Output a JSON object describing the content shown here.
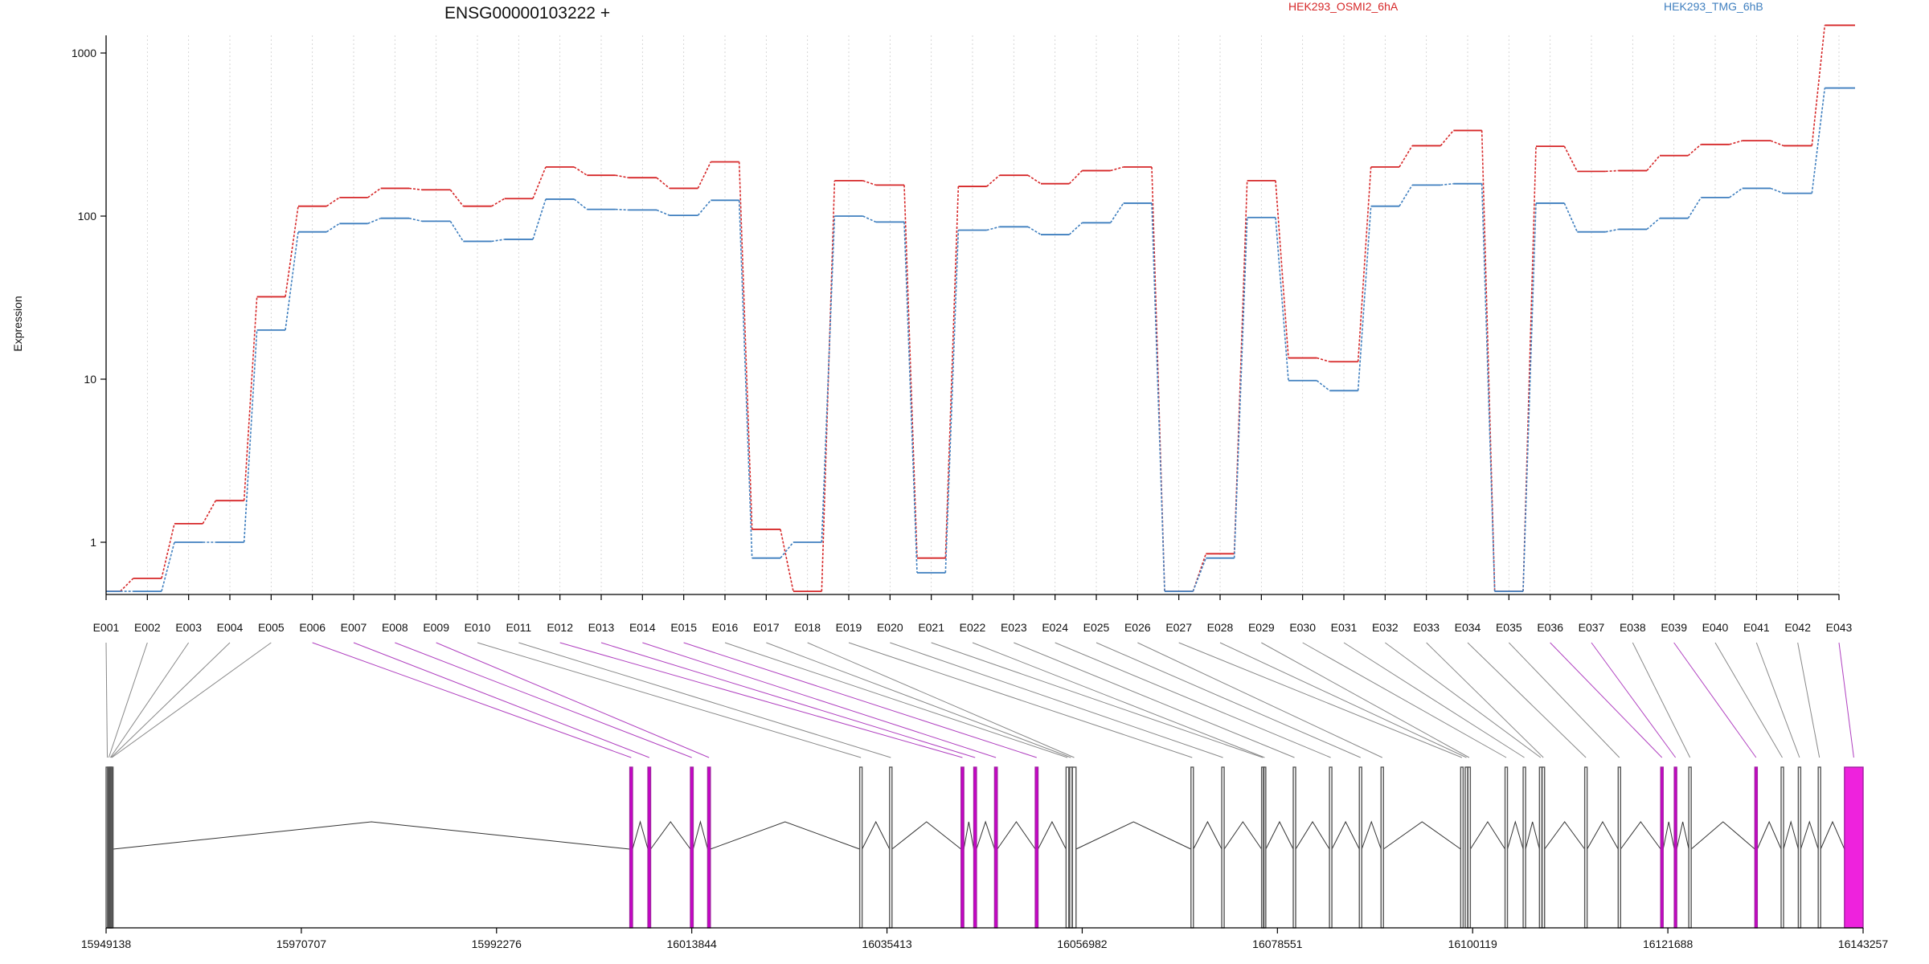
{
  "chart_data": {
    "type": "line",
    "title": "ENSG00000103222 +",
    "ylabel": "Expression",
    "xlabel": "",
    "yscale": "log",
    "ylim": [
      0.5,
      2000
    ],
    "yticks": [
      1,
      10,
      100,
      1000
    ],
    "ytick_labels": [
      "1",
      "10",
      "100",
      "1000"
    ],
    "grid": "vertical-dotted",
    "legend_placement": "top",
    "categories": [
      "E001",
      "E002",
      "E003",
      "E004",
      "E005",
      "E006",
      "E007",
      "E008",
      "E009",
      "E010",
      "E011",
      "E012",
      "E013",
      "E014",
      "E015",
      "E016",
      "E017",
      "E018",
      "E019",
      "E020",
      "E021",
      "E022",
      "E023",
      "E024",
      "E025",
      "E026",
      "E027",
      "E028",
      "E029",
      "E030",
      "E031",
      "E032",
      "E033",
      "E034",
      "E035",
      "E036",
      "E037",
      "E038",
      "E039",
      "E040",
      "E041",
      "E042",
      "E043"
    ],
    "series": [
      {
        "name": "HEK293_OSMI2_6hA",
        "color": "#d62728",
        "values": [
          0.5,
          0.6,
          1.3,
          1.8,
          32,
          115,
          130,
          148,
          145,
          115,
          128,
          200,
          178,
          172,
          148,
          215,
          1.2,
          0.5,
          165,
          155,
          0.8,
          152,
          178,
          158,
          190,
          200,
          0.5,
          0.85,
          165,
          13.5,
          12.8,
          200,
          270,
          335,
          0.5,
          268,
          188,
          190,
          235,
          275,
          290,
          270,
          1480
        ]
      },
      {
        "name": "HEK293_TMG_6hB",
        "color": "#3f7fbf",
        "values": [
          0.5,
          0.5,
          1.0,
          1.0,
          20,
          80,
          90,
          97,
          93,
          70,
          72,
          127,
          110,
          109,
          101,
          125,
          0.8,
          1.0,
          100,
          92,
          0.65,
          82,
          86,
          77,
          91,
          120,
          0.5,
          0.8,
          98,
          9.8,
          8.5,
          115,
          155,
          158,
          0.5,
          120,
          80,
          83,
          97,
          130,
          148,
          138,
          610
        ]
      }
    ],
    "genomic_axis": {
      "tick_labels": [
        "15949138",
        "15970707",
        "15992276",
        "16013844",
        "16035413",
        "16056982",
        "16078551",
        "16100119",
        "16121688",
        "16143257"
      ],
      "range": [
        15949138,
        16143257
      ]
    },
    "gene_model": {
      "exon_colors": {
        "plain": "#555555",
        "highlight": "#a020a0",
        "last_exon": "#ee22dd"
      },
      "exons": [
        {
          "id": "E001",
          "start": 15949138,
          "end": 15949300,
          "highlight": false
        },
        {
          "id": "E002",
          "start": 15949300,
          "end": 15949480,
          "highlight": false
        },
        {
          "id": "E003",
          "start": 15949480,
          "end": 15949560,
          "highlight": false
        },
        {
          "id": "E004",
          "start": 15949560,
          "end": 15949640,
          "highlight": false
        },
        {
          "id": "E005",
          "start": 15949640,
          "end": 15949780,
          "highlight": false
        },
        {
          "id": "E006",
          "start": 16007000,
          "end": 16007300,
          "highlight": true
        },
        {
          "id": "E007",
          "start": 16009000,
          "end": 16009300,
          "highlight": true
        },
        {
          "id": "E008",
          "start": 16013700,
          "end": 16014000,
          "highlight": true
        },
        {
          "id": "E009",
          "start": 16015600,
          "end": 16015900,
          "highlight": true
        },
        {
          "id": "E010",
          "start": 16032400,
          "end": 16032600,
          "highlight": false
        },
        {
          "id": "E011",
          "start": 16035700,
          "end": 16035900,
          "highlight": false
        },
        {
          "id": "E012",
          "start": 16043600,
          "end": 16043900,
          "highlight": true
        },
        {
          "id": "E013",
          "start": 16045000,
          "end": 16045300,
          "highlight": true
        },
        {
          "id": "E014",
          "start": 16047300,
          "end": 16047600,
          "highlight": true
        },
        {
          "id": "E015",
          "start": 16051800,
          "end": 16052100,
          "highlight": true
        },
        {
          "id": "E016",
          "start": 16055200,
          "end": 16055500,
          "highlight": false
        },
        {
          "id": "E017",
          "start": 16055600,
          "end": 16055750,
          "highlight": false
        },
        {
          "id": "E018",
          "start": 16055900,
          "end": 16056300,
          "highlight": false
        },
        {
          "id": "E019",
          "start": 16069000,
          "end": 16069200,
          "highlight": false
        },
        {
          "id": "E020",
          "start": 16072400,
          "end": 16072600,
          "highlight": false
        },
        {
          "id": "E021",
          "start": 16076800,
          "end": 16076950,
          "highlight": false
        },
        {
          "id": "E022",
          "start": 16077000,
          "end": 16077200,
          "highlight": false
        },
        {
          "id": "E023",
          "start": 16080300,
          "end": 16080500,
          "highlight": false
        },
        {
          "id": "E024",
          "start": 16084300,
          "end": 16084500,
          "highlight": false
        },
        {
          "id": "E025",
          "start": 16087600,
          "end": 16087800,
          "highlight": false
        },
        {
          "id": "E026",
          "start": 16090000,
          "end": 16090200,
          "highlight": false
        },
        {
          "id": "E027",
          "start": 16098800,
          "end": 16099000,
          "highlight": false
        },
        {
          "id": "E028",
          "start": 16099300,
          "end": 16099500,
          "highlight": false
        },
        {
          "id": "E029",
          "start": 16099600,
          "end": 16099800,
          "highlight": false
        },
        {
          "id": "E030",
          "start": 16103700,
          "end": 16103900,
          "highlight": false
        },
        {
          "id": "E031",
          "start": 16105700,
          "end": 16105900,
          "highlight": false
        },
        {
          "id": "E032",
          "start": 16107500,
          "end": 16107700,
          "highlight": false
        },
        {
          "id": "E033",
          "start": 16107800,
          "end": 16107950,
          "highlight": false
        },
        {
          "id": "E034",
          "start": 16112500,
          "end": 16112700,
          "highlight": false
        },
        {
          "id": "E035",
          "start": 16116200,
          "end": 16116400,
          "highlight": false
        },
        {
          "id": "E036",
          "start": 16120900,
          "end": 16121150,
          "highlight": true
        },
        {
          "id": "E037",
          "start": 16122400,
          "end": 16122650,
          "highlight": true
        },
        {
          "id": "E038",
          "start": 16124000,
          "end": 16124200,
          "highlight": false
        },
        {
          "id": "E039",
          "start": 16131300,
          "end": 16131500,
          "highlight": true
        },
        {
          "id": "E040",
          "start": 16134200,
          "end": 16134400,
          "highlight": false
        },
        {
          "id": "E041",
          "start": 16136100,
          "end": 16136300,
          "highlight": false
        },
        {
          "id": "E042",
          "start": 16138300,
          "end": 16138500,
          "highlight": false
        },
        {
          "id": "E043",
          "start": 16141200,
          "end": 16143257,
          "highlight": true
        }
      ]
    }
  }
}
